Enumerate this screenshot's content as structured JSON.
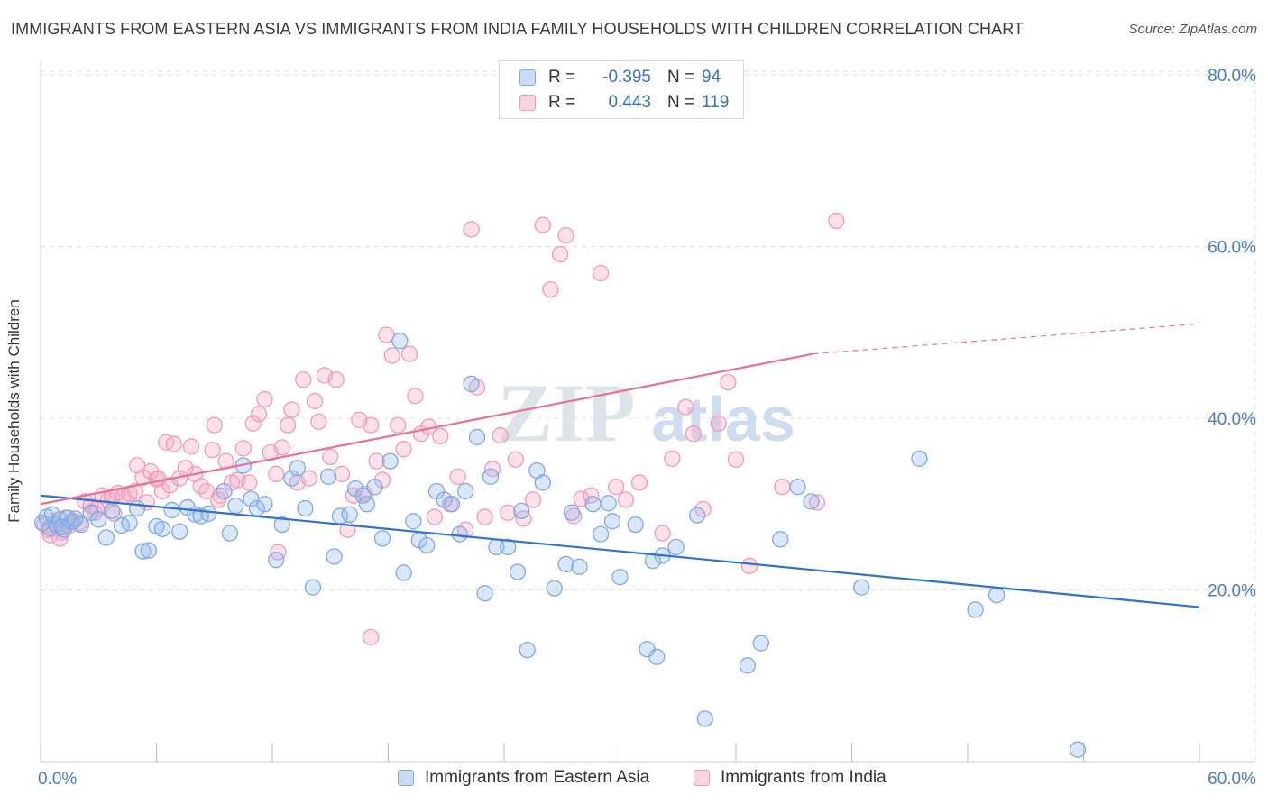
{
  "title": "IMMIGRANTS FROM EASTERN ASIA VS IMMIGRANTS FROM INDIA FAMILY HOUSEHOLDS WITH CHILDREN CORRELATION CHART",
  "source": "Source: ZipAtlas.com",
  "watermark": {
    "zip": "ZIP",
    "atlas": "atlas"
  },
  "legend": {
    "rows": [
      {
        "r_label": "R =",
        "r_value": "-0.395",
        "n_label": "N =",
        "n_value": "94"
      },
      {
        "r_label": "R =",
        "r_value": "0.443",
        "n_label": "N =",
        "n_value": "119"
      }
    ]
  },
  "colors": {
    "blue": "#7fa9e3",
    "blue_fill": "rgba(150,186,236,0.35)",
    "blue_line": "#2f72d0",
    "pink": "#f09ab8",
    "pink_fill": "rgba(246,170,197,0.35)",
    "pink_line": "#e8709a",
    "grid": "#dcdcdc",
    "axis_label": "#4a7ec9"
  },
  "chart_data": {
    "type": "scatter",
    "title": "IMMIGRANTS FROM EASTERN ASIA VS IMMIGRANTS FROM INDIA FAMILY HOUSEHOLDS WITH CHILDREN CORRELATION CHART",
    "xlabel": "",
    "ylabel": "Family Households with Children",
    "xlim": [
      0,
      60
    ],
    "ylim": [
      0,
      82
    ],
    "x_tick_labels": [
      "0.0%",
      "60.0%"
    ],
    "y_ticks": [
      20,
      40,
      60,
      80
    ],
    "y_tick_labels": [
      "20.0%",
      "40.0%",
      "60.0%",
      "80.0%"
    ],
    "grid": true,
    "legend_position": "top-center",
    "series": [
      {
        "name": "Immigrants from Eastern Asia",
        "color": "blue",
        "R": -0.395,
        "N": 94,
        "trend": {
          "x": [
            0,
            60
          ],
          "y": [
            31.0,
            18.0
          ]
        },
        "points": [
          [
            0.1,
            27.8
          ],
          [
            0.3,
            28.5
          ],
          [
            0.5,
            27.2
          ],
          [
            0.6,
            28.8
          ],
          [
            0.8,
            27.6
          ],
          [
            1.0,
            28.2
          ],
          [
            1.2,
            27.0
          ],
          [
            1.4,
            28.4
          ],
          [
            1.6,
            27.9
          ],
          [
            1.8,
            28.3
          ],
          [
            2.1,
            27.6
          ],
          [
            2.6,
            29.0
          ],
          [
            3.0,
            28.2
          ],
          [
            3.4,
            26.1
          ],
          [
            3.7,
            29.2
          ],
          [
            4.2,
            27.5
          ],
          [
            4.6,
            27.8
          ],
          [
            5.0,
            29.5
          ],
          [
            5.3,
            24.5
          ],
          [
            5.6,
            24.6
          ],
          [
            6.0,
            27.4
          ],
          [
            6.3,
            27.1
          ],
          [
            6.8,
            29.3
          ],
          [
            7.2,
            26.8
          ],
          [
            7.6,
            29.6
          ],
          [
            8.0,
            28.8
          ],
          [
            8.3,
            28.6
          ],
          [
            8.7,
            28.9
          ],
          [
            9.5,
            31.5
          ],
          [
            9.8,
            26.6
          ],
          [
            10.1,
            29.8
          ],
          [
            10.5,
            34.5
          ],
          [
            10.9,
            30.6
          ],
          [
            11.2,
            29.5
          ],
          [
            11.6,
            30.0
          ],
          [
            12.2,
            23.5
          ],
          [
            12.5,
            27.6
          ],
          [
            13.0,
            33.0
          ],
          [
            13.3,
            34.2
          ],
          [
            13.7,
            29.5
          ],
          [
            14.1,
            20.3
          ],
          [
            14.9,
            33.2
          ],
          [
            15.2,
            23.9
          ],
          [
            15.5,
            28.6
          ],
          [
            16.0,
            28.8
          ],
          [
            16.3,
            31.8
          ],
          [
            16.7,
            31.0
          ],
          [
            16.9,
            30.0
          ],
          [
            17.3,
            32.0
          ],
          [
            17.7,
            26.0
          ],
          [
            18.1,
            35.0
          ],
          [
            18.6,
            49.0
          ],
          [
            18.8,
            22.0
          ],
          [
            19.3,
            28.0
          ],
          [
            19.6,
            25.8
          ],
          [
            20.0,
            25.2
          ],
          [
            20.5,
            31.5
          ],
          [
            20.9,
            30.5
          ],
          [
            21.3,
            30.0
          ],
          [
            21.7,
            26.5
          ],
          [
            22.0,
            31.5
          ],
          [
            22.3,
            44.0
          ],
          [
            22.6,
            37.8
          ],
          [
            23.0,
            19.6
          ],
          [
            23.3,
            33.2
          ],
          [
            23.6,
            25.0
          ],
          [
            24.2,
            25.0
          ],
          [
            24.7,
            22.1
          ],
          [
            24.9,
            29.2
          ],
          [
            25.2,
            13.0
          ],
          [
            25.7,
            33.9
          ],
          [
            26.0,
            32.5
          ],
          [
            26.6,
            20.2
          ],
          [
            27.2,
            23.0
          ],
          [
            27.5,
            29.0
          ],
          [
            27.9,
            22.7
          ],
          [
            28.6,
            30.0
          ],
          [
            29.0,
            26.5
          ],
          [
            29.4,
            30.1
          ],
          [
            29.6,
            28.0
          ],
          [
            30.0,
            21.5
          ],
          [
            30.8,
            27.6
          ],
          [
            31.4,
            13.1
          ],
          [
            31.7,
            23.4
          ],
          [
            31.9,
            12.2
          ],
          [
            32.2,
            24.0
          ],
          [
            32.9,
            25.0
          ],
          [
            34.0,
            28.7
          ],
          [
            34.4,
            5.0
          ],
          [
            36.6,
            11.2
          ],
          [
            37.3,
            13.8
          ],
          [
            38.3,
            25.9
          ],
          [
            39.2,
            32.0
          ],
          [
            39.9,
            30.3
          ],
          [
            42.5,
            20.3
          ],
          [
            45.5,
            35.3
          ],
          [
            48.4,
            17.7
          ],
          [
            49.5,
            19.4
          ],
          [
            53.7,
            1.4
          ],
          [
            1.1,
            27.3
          ]
        ]
      },
      {
        "name": "Immigrants from India",
        "color": "pink",
        "R": 0.443,
        "N": 119,
        "trend": {
          "x": [
            0,
            40
          ],
          "y": [
            30.0,
            47.5
          ]
        },
        "trend_dashed": {
          "x": [
            40,
            60
          ],
          "y": [
            47.5,
            51.0
          ]
        },
        "points": [
          [
            0.2,
            27.6
          ],
          [
            0.4,
            27.0
          ],
          [
            0.5,
            26.4
          ],
          [
            0.7,
            27.9
          ],
          [
            0.9,
            27.2
          ],
          [
            1.1,
            26.7
          ],
          [
            1.3,
            28.4
          ],
          [
            1.5,
            27.5
          ],
          [
            1.7,
            28.0
          ],
          [
            2.0,
            27.8
          ],
          [
            2.3,
            30.3
          ],
          [
            2.6,
            29.8
          ],
          [
            2.9,
            29.4
          ],
          [
            3.2,
            31.0
          ],
          [
            3.5,
            30.5
          ],
          [
            3.8,
            28.9
          ],
          [
            4.0,
            31.3
          ],
          [
            4.3,
            30.9
          ],
          [
            4.6,
            31.2
          ],
          [
            4.9,
            31.5
          ],
          [
            5.0,
            34.5
          ],
          [
            5.3,
            33.1
          ],
          [
            5.5,
            30.2
          ],
          [
            5.7,
            33.8
          ],
          [
            6.0,
            32.9
          ],
          [
            6.3,
            31.5
          ],
          [
            6.5,
            37.2
          ],
          [
            6.7,
            32.2
          ],
          [
            6.9,
            37.0
          ],
          [
            7.2,
            33.0
          ],
          [
            7.5,
            34.2
          ],
          [
            7.8,
            36.7
          ],
          [
            8.0,
            33.5
          ],
          [
            8.3,
            32.1
          ],
          [
            8.6,
            31.5
          ],
          [
            8.9,
            36.3
          ],
          [
            9.0,
            39.2
          ],
          [
            9.3,
            31.0
          ],
          [
            9.6,
            35.0
          ],
          [
            9.9,
            32.5
          ],
          [
            10.2,
            32.8
          ],
          [
            10.5,
            36.5
          ],
          [
            10.8,
            32.5
          ],
          [
            11.0,
            39.4
          ],
          [
            11.3,
            40.5
          ],
          [
            11.6,
            42.2
          ],
          [
            11.9,
            36.0
          ],
          [
            12.2,
            33.5
          ],
          [
            12.5,
            36.6
          ],
          [
            12.8,
            39.2
          ],
          [
            13.0,
            41.0
          ],
          [
            13.3,
            32.5
          ],
          [
            13.6,
            44.5
          ],
          [
            13.9,
            33.0
          ],
          [
            14.2,
            42.0
          ],
          [
            14.4,
            39.6
          ],
          [
            14.7,
            45.0
          ],
          [
            15.0,
            35.5
          ],
          [
            15.3,
            44.5
          ],
          [
            15.6,
            33.5
          ],
          [
            15.9,
            27.0
          ],
          [
            16.2,
            31.0
          ],
          [
            16.5,
            39.8
          ],
          [
            16.8,
            31.2
          ],
          [
            17.1,
            39.2
          ],
          [
            17.4,
            35.0
          ],
          [
            17.7,
            32.8
          ],
          [
            17.9,
            49.7
          ],
          [
            18.2,
            47.3
          ],
          [
            18.5,
            39.2
          ],
          [
            18.8,
            36.4
          ],
          [
            19.1,
            47.5
          ],
          [
            19.4,
            42.6
          ],
          [
            19.7,
            38.2
          ],
          [
            20.1,
            39.0
          ],
          [
            20.4,
            28.5
          ],
          [
            20.7,
            37.9
          ],
          [
            21.2,
            30.0
          ],
          [
            21.6,
            33.2
          ],
          [
            22.0,
            27.0
          ],
          [
            22.3,
            62.0
          ],
          [
            22.6,
            43.6
          ],
          [
            23.0,
            28.5
          ],
          [
            23.4,
            34.1
          ],
          [
            23.8,
            38.0
          ],
          [
            24.2,
            29.0
          ],
          [
            24.6,
            35.2
          ],
          [
            25.0,
            28.3
          ],
          [
            25.5,
            30.5
          ],
          [
            26.0,
            62.5
          ],
          [
            26.4,
            55.0
          ],
          [
            26.9,
            59.1
          ],
          [
            27.2,
            61.3
          ],
          [
            27.6,
            28.6
          ],
          [
            28.0,
            30.6
          ],
          [
            28.5,
            31.0
          ],
          [
            29.0,
            56.9
          ],
          [
            29.8,
            32.0
          ],
          [
            30.3,
            30.5
          ],
          [
            31.0,
            32.5
          ],
          [
            32.2,
            26.6
          ],
          [
            32.7,
            35.3
          ],
          [
            33.4,
            41.3
          ],
          [
            33.8,
            38.2
          ],
          [
            34.3,
            29.4
          ],
          [
            35.1,
            39.4
          ],
          [
            35.6,
            44.2
          ],
          [
            36.0,
            35.2
          ],
          [
            36.7,
            22.8
          ],
          [
            38.4,
            32.0
          ],
          [
            40.2,
            30.2
          ],
          [
            41.2,
            63.0
          ],
          [
            17.1,
            14.5
          ],
          [
            12.3,
            24.4
          ],
          [
            9.2,
            30.5
          ],
          [
            6.1,
            33.0
          ],
          [
            2.8,
            29.0
          ],
          [
            1.0,
            26.0
          ],
          [
            3.7,
            30.8
          ]
        ]
      }
    ]
  }
}
